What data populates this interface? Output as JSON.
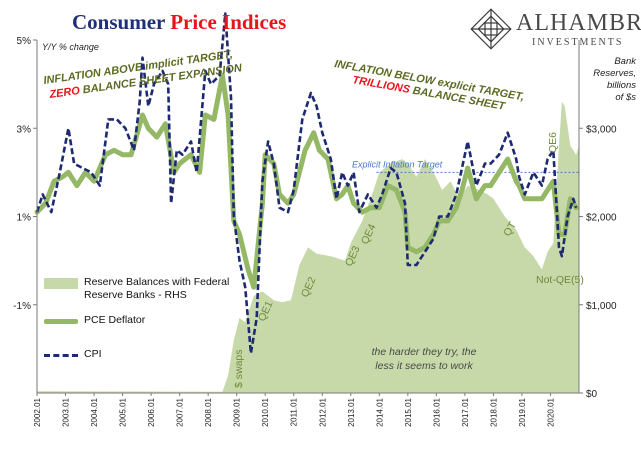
{
  "title": {
    "prefix": "Consumer ",
    "highlight": "Price Indices"
  },
  "logo": {
    "name": "ALHAMBRA",
    "sub": "INVESTMENTS"
  },
  "subtitle": "Y/Y % change",
  "rhs_title": [
    "Bank",
    "Reserves,",
    "billions",
    "of $s"
  ],
  "annotations": {
    "left_1": "INFLATION ABOVE implicit TARGET,",
    "left_2_red": "ZERO",
    "left_2_rest": " BALANCE SHEET EXPANSION",
    "right_1": "INFLATION BELOW explicit TARGET,",
    "right_2_red": "TRILLIONS",
    "right_2_rest": " BALANCE SHEET",
    "target": "Explicit Inflation Target",
    "footnote_1": "the harder they try, the",
    "footnote_2": "less it seems to work",
    "qe": [
      "$ swaps",
      "QE1",
      "QE2",
      "QE3",
      "QE4",
      "QT",
      "Not-QE(5)",
      "QE6"
    ]
  },
  "legend": {
    "area": [
      "Reserve Balances with Federal",
      "Reserve Banks - RHS"
    ],
    "pce": "PCE Deflator",
    "cpi": "CPI"
  },
  "colors": {
    "area": "#c7d9a9",
    "pce": "#94b865",
    "cpi": "#1d2a72",
    "axis": "#7a7a7a",
    "text_green": "#5b6b22",
    "text_red": "#e8141b",
    "target": "#4a78c8",
    "title_blue": "#1f2f78",
    "footnote": "#4a4a4a"
  },
  "chart_data": {
    "type": "line",
    "x_range": [
      "2002-01",
      "2020-12"
    ],
    "x_tick_labels": [
      "2002.01",
      "2003.01",
      "2004.01",
      "2005.01",
      "2006.01",
      "2007.01",
      "2008.01",
      "2009.01",
      "2010.01",
      "2011.01",
      "2012.01",
      "2013.01",
      "2014.01",
      "2015.01",
      "2016.01",
      "2017.01",
      "2018.01",
      "2019.01",
      "2020.01"
    ],
    "y_left": {
      "min": -3,
      "max": 5,
      "tick_labels": [
        "5%",
        "3%",
        "1%",
        "-1%"
      ],
      "tick_values": [
        5,
        3,
        1,
        -1
      ]
    },
    "y_right": {
      "min": 0,
      "max": 4000,
      "tick_labels": [
        "$3,000",
        "$2,000",
        "$1,000",
        "$0"
      ],
      "tick_values": [
        3000,
        2000,
        1000,
        0
      ]
    },
    "target_line": 2.0,
    "series": [
      {
        "key": "reserves",
        "type": "area",
        "axis": "right",
        "points": [
          [
            2002.0,
            20
          ],
          [
            2008.5,
            15
          ],
          [
            2008.7,
            200
          ],
          [
            2008.9,
            600
          ],
          [
            2009.1,
            850
          ],
          [
            2009.3,
            800
          ],
          [
            2009.6,
            1100
          ],
          [
            2009.9,
            1150
          ],
          [
            2010.3,
            1050
          ],
          [
            2010.6,
            1030
          ],
          [
            2010.9,
            1050
          ],
          [
            2011.2,
            1450
          ],
          [
            2011.5,
            1650
          ],
          [
            2011.8,
            1580
          ],
          [
            2012.3,
            1550
          ],
          [
            2012.8,
            1500
          ],
          [
            2013.0,
            1700
          ],
          [
            2013.4,
            1950
          ],
          [
            2013.8,
            2300
          ],
          [
            2014.0,
            2500
          ],
          [
            2014.4,
            2600
          ],
          [
            2014.8,
            2650
          ],
          [
            2015.0,
            2600
          ],
          [
            2015.3,
            2450
          ],
          [
            2015.6,
            2650
          ],
          [
            2015.9,
            2500
          ],
          [
            2016.2,
            2300
          ],
          [
            2016.5,
            2400
          ],
          [
            2016.8,
            2200
          ],
          [
            2017.1,
            2350
          ],
          [
            2017.5,
            2300
          ],
          [
            2017.8,
            2250
          ],
          [
            2018.0,
            2200
          ],
          [
            2018.4,
            2000
          ],
          [
            2018.8,
            1850
          ],
          [
            2019.1,
            1650
          ],
          [
            2019.4,
            1550
          ],
          [
            2019.7,
            1400
          ],
          [
            2019.9,
            1600
          ],
          [
            2020.1,
            1700
          ],
          [
            2020.3,
            2800
          ],
          [
            2020.4,
            3300
          ],
          [
            2020.5,
            3250
          ],
          [
            2020.7,
            2800
          ],
          [
            2020.9,
            2700
          ],
          [
            2021.0,
            2800
          ]
        ]
      },
      {
        "key": "pce",
        "type": "line",
        "axis": "left",
        "points": [
          [
            2002.0,
            1.1
          ],
          [
            2002.3,
            1.3
          ],
          [
            2002.6,
            1.8
          ],
          [
            2002.9,
            1.9
          ],
          [
            2003.1,
            2.0
          ],
          [
            2003.4,
            1.7
          ],
          [
            2003.7,
            2.0
          ],
          [
            2004.0,
            1.8
          ],
          [
            2004.4,
            2.4
          ],
          [
            2004.7,
            2.5
          ],
          [
            2005.0,
            2.4
          ],
          [
            2005.3,
            2.4
          ],
          [
            2005.7,
            3.3
          ],
          [
            2005.9,
            3.0
          ],
          [
            2006.2,
            2.8
          ],
          [
            2006.5,
            3.1
          ],
          [
            2006.8,
            2.0
          ],
          [
            2007.0,
            2.2
          ],
          [
            2007.4,
            2.4
          ],
          [
            2007.7,
            2.0
          ],
          [
            2007.9,
            3.3
          ],
          [
            2008.2,
            3.2
          ],
          [
            2008.5,
            4.2
          ],
          [
            2008.7,
            3.3
          ],
          [
            2008.9,
            0.9
          ],
          [
            2009.1,
            0.6
          ],
          [
            2009.4,
            -0.2
          ],
          [
            2009.6,
            -0.6
          ],
          [
            2009.9,
            1.3
          ],
          [
            2010.0,
            2.4
          ],
          [
            2010.3,
            2.2
          ],
          [
            2010.5,
            1.5
          ],
          [
            2010.8,
            1.3
          ],
          [
            2011.0,
            1.5
          ],
          [
            2011.4,
            2.5
          ],
          [
            2011.7,
            2.9
          ],
          [
            2011.9,
            2.5
          ],
          [
            2012.2,
            2.3
          ],
          [
            2012.5,
            1.4
          ],
          [
            2012.7,
            1.5
          ],
          [
            2012.9,
            1.7
          ],
          [
            2013.1,
            1.3
          ],
          [
            2013.4,
            1.1
          ],
          [
            2013.7,
            1.2
          ],
          [
            2014.0,
            1.2
          ],
          [
            2014.3,
            1.7
          ],
          [
            2014.6,
            1.6
          ],
          [
            2014.9,
            1.1
          ],
          [
            2015.0,
            0.3
          ],
          [
            2015.3,
            0.2
          ],
          [
            2015.6,
            0.3
          ],
          [
            2015.9,
            0.6
          ],
          [
            2016.1,
            0.9
          ],
          [
            2016.4,
            0.9
          ],
          [
            2016.7,
            1.2
          ],
          [
            2016.9,
            1.6
          ],
          [
            2017.1,
            2.1
          ],
          [
            2017.4,
            1.4
          ],
          [
            2017.7,
            1.7
          ],
          [
            2017.9,
            1.7
          ],
          [
            2018.2,
            2.0
          ],
          [
            2018.5,
            2.3
          ],
          [
            2018.8,
            1.8
          ],
          [
            2018.9,
            1.7
          ],
          [
            2019.1,
            1.4
          ],
          [
            2019.4,
            1.4
          ],
          [
            2019.7,
            1.4
          ],
          [
            2019.9,
            1.6
          ],
          [
            2020.1,
            1.8
          ],
          [
            2020.3,
            0.6
          ],
          [
            2020.5,
            0.6
          ],
          [
            2020.7,
            1.4
          ],
          [
            2020.9,
            1.2
          ]
        ]
      },
      {
        "key": "cpi",
        "type": "line",
        "axis": "left",
        "points": [
          [
            2002.0,
            1.1
          ],
          [
            2002.2,
            1.5
          ],
          [
            2002.5,
            1.1
          ],
          [
            2002.8,
            2.0
          ],
          [
            2003.1,
            3.0
          ],
          [
            2003.3,
            2.2
          ],
          [
            2003.6,
            2.1
          ],
          [
            2003.9,
            2.0
          ],
          [
            2004.2,
            1.7
          ],
          [
            2004.5,
            3.2
          ],
          [
            2004.8,
            3.2
          ],
          [
            2005.1,
            3.0
          ],
          [
            2005.4,
            2.5
          ],
          [
            2005.6,
            3.6
          ],
          [
            2005.7,
            4.6
          ],
          [
            2005.9,
            3.5
          ],
          [
            2006.1,
            4.0
          ],
          [
            2006.4,
            4.3
          ],
          [
            2006.6,
            4.0
          ],
          [
            2006.7,
            1.3
          ],
          [
            2006.9,
            2.5
          ],
          [
            2007.1,
            2.4
          ],
          [
            2007.4,
            2.7
          ],
          [
            2007.6,
            2.0
          ],
          [
            2007.9,
            4.3
          ],
          [
            2008.1,
            4.0
          ],
          [
            2008.4,
            4.2
          ],
          [
            2008.6,
            5.6
          ],
          [
            2008.8,
            3.7
          ],
          [
            2008.9,
            1.0
          ],
          [
            2009.1,
            0.0
          ],
          [
            2009.3,
            -0.6
          ],
          [
            2009.5,
            -2.1
          ],
          [
            2009.7,
            -1.3
          ],
          [
            2009.9,
            1.8
          ],
          [
            2010.1,
            2.7
          ],
          [
            2010.3,
            2.2
          ],
          [
            2010.5,
            1.2
          ],
          [
            2010.8,
            1.1
          ],
          [
            2011.0,
            1.6
          ],
          [
            2011.3,
            3.2
          ],
          [
            2011.6,
            3.8
          ],
          [
            2011.8,
            3.5
          ],
          [
            2012.0,
            2.9
          ],
          [
            2012.3,
            2.3
          ],
          [
            2012.5,
            1.4
          ],
          [
            2012.7,
            2.0
          ],
          [
            2012.9,
            1.7
          ],
          [
            2013.1,
            2.0
          ],
          [
            2013.3,
            1.1
          ],
          [
            2013.6,
            1.5
          ],
          [
            2013.9,
            1.2
          ],
          [
            2014.1,
            1.5
          ],
          [
            2014.4,
            2.1
          ],
          [
            2014.6,
            2.0
          ],
          [
            2014.9,
            1.3
          ],
          [
            2015.0,
            -0.1
          ],
          [
            2015.3,
            -0.1
          ],
          [
            2015.6,
            0.2
          ],
          [
            2015.9,
            0.5
          ],
          [
            2016.1,
            1.0
          ],
          [
            2016.4,
            1.0
          ],
          [
            2016.7,
            1.5
          ],
          [
            2016.9,
            2.1
          ],
          [
            2017.1,
            2.7
          ],
          [
            2017.4,
            1.7
          ],
          [
            2017.7,
            2.2
          ],
          [
            2017.9,
            2.2
          ],
          [
            2018.2,
            2.4
          ],
          [
            2018.5,
            2.9
          ],
          [
            2018.8,
            2.3
          ],
          [
            2018.9,
            1.9
          ],
          [
            2019.1,
            1.5
          ],
          [
            2019.4,
            2.0
          ],
          [
            2019.7,
            1.7
          ],
          [
            2019.9,
            2.3
          ],
          [
            2020.1,
            2.5
          ],
          [
            2020.3,
            0.3
          ],
          [
            2020.4,
            0.1
          ],
          [
            2020.6,
            1.0
          ],
          [
            2020.8,
            1.4
          ],
          [
            2020.9,
            1.2
          ]
        ]
      }
    ]
  }
}
